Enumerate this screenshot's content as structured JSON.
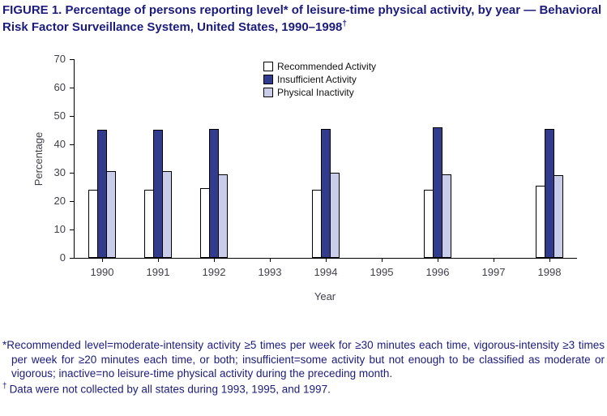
{
  "title": {
    "text": "FIGURE 1. Percentage of persons reporting level* of leisure-time physical activity, by year — Behavioral Risk Factor Surveillance System, United States, 1990–1998",
    "dagger": "†"
  },
  "chart_data": {
    "type": "bar",
    "categories": [
      "1990",
      "1991",
      "1992",
      "1993",
      "1994",
      "1995",
      "1996",
      "1997",
      "1998"
    ],
    "series": [
      {
        "name": "Recommended Activity",
        "color": "#ffffff",
        "values": [
          24,
          24,
          24.5,
          null,
          24,
          null,
          24,
          null,
          25.5
        ]
      },
      {
        "name": "Insufficient Activity",
        "color": "#313c8e",
        "values": [
          45,
          45,
          45.5,
          null,
          45.3,
          null,
          46,
          null,
          45.5
        ]
      },
      {
        "name": "Physical Inactivity",
        "color": "#c9cdea",
        "values": [
          30.5,
          30.5,
          29.5,
          null,
          30,
          null,
          29.5,
          null,
          29
        ]
      }
    ],
    "xlabel": "Year",
    "ylabel": "Percentage",
    "ylim": [
      0,
      70
    ],
    "yticks": [
      0,
      10,
      20,
      30,
      40,
      50,
      60,
      70
    ],
    "grid": false,
    "legend_position": "top-center-inside",
    "bar_border_color": "#000000",
    "note": "No bars shown for 1993, 1995, 1997 (data not collected)"
  },
  "footnotes": {
    "star": "*",
    "star_text": "Recommended level=moderate-intensity activity ≥5 times per week for ≥30 minutes each time, vigorous-intensity ≥3 times per week for ≥20 minutes each time, or both; insufficient=some activity but not enough to be classified as moderate or vigorous; inactive=no leisure-time physical activity during the preceding month.",
    "dagger": "†",
    "dagger_text": "Data were not collected by all states during 1993, 1995, and 1997."
  }
}
